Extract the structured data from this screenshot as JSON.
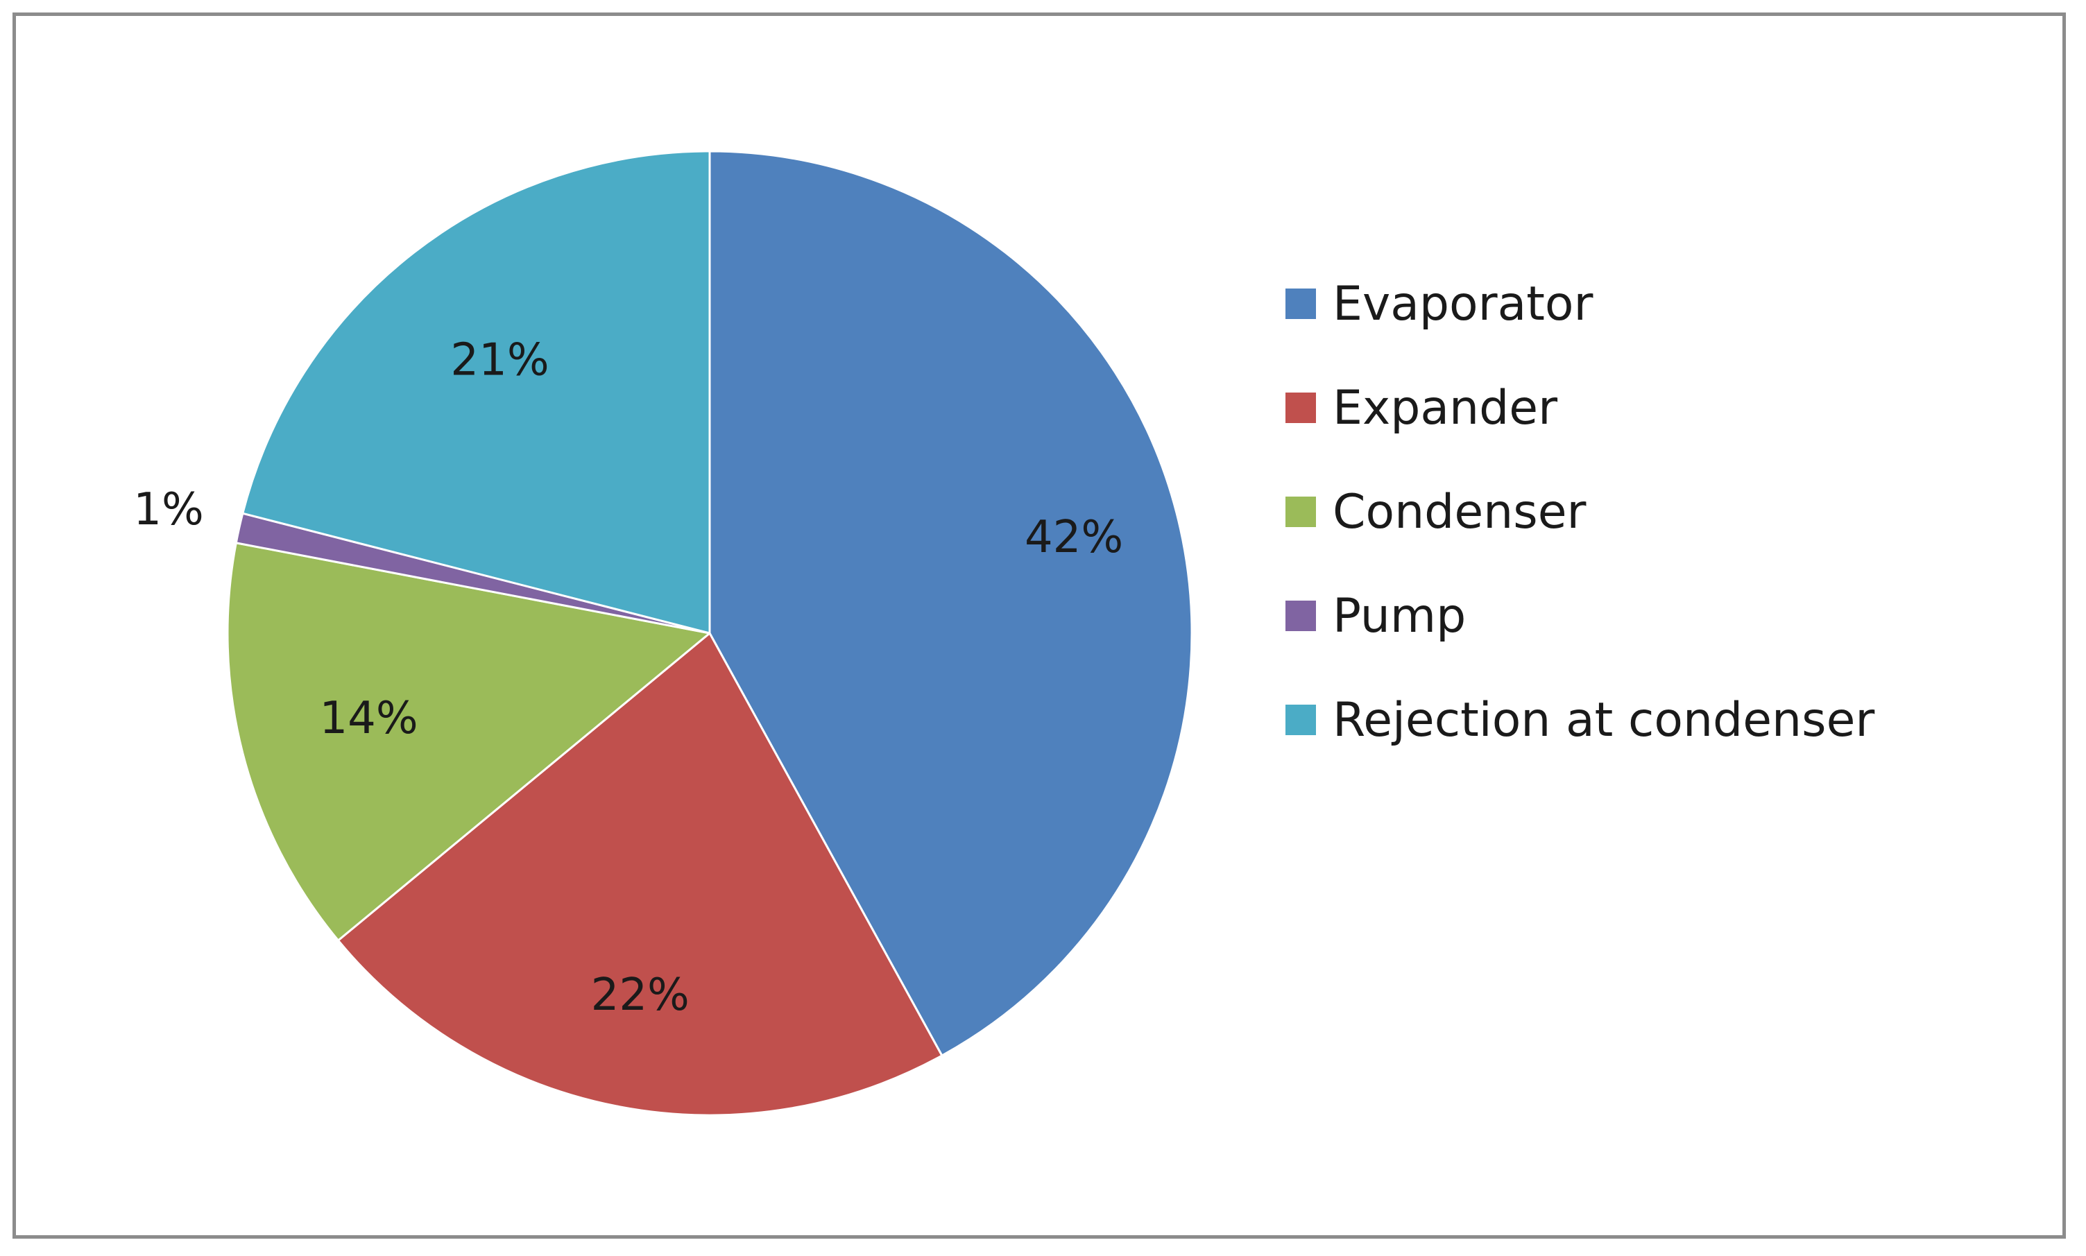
{
  "chart_data": {
    "type": "pie",
    "title": "",
    "categories": [
      "Evaporator",
      "Expander",
      "Condenser",
      "Pump",
      "Rejection at condenser"
    ],
    "values": [
      42,
      22,
      14,
      1,
      21
    ],
    "value_labels": [
      "42%",
      "22%",
      "14%",
      "1%",
      "21%"
    ],
    "colors": [
      "#4f81bd",
      "#c0504d",
      "#9bbb59",
      "#8064a2",
      "#4bacc6"
    ],
    "legend_position": "right",
    "start_angle": "12 o'clock",
    "direction": "clockwise"
  }
}
